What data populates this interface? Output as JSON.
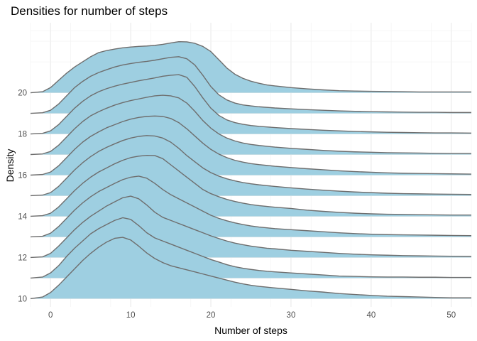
{
  "chart_data": {
    "type": "area",
    "subtype": "ridgeline",
    "title": "Densities for number of steps",
    "xlabel": "Number of steps",
    "ylabel": "Density",
    "xlim": [
      -2.5,
      52.5
    ],
    "ylim": [
      9.6,
      23.4
    ],
    "x_ticks": [
      0,
      10,
      20,
      30,
      40,
      50
    ],
    "y_ticks": [
      10,
      12,
      14,
      16,
      18,
      20
    ],
    "grid": true,
    "fill_color": "#9ecfe1",
    "line_color": "#6e6e6e",
    "series": [
      {
        "baseline": 10,
        "x": [
          -2.5,
          -1,
          0,
          1,
          2,
          3,
          4,
          5,
          6,
          7,
          8,
          9,
          10,
          11,
          12,
          13,
          14,
          15,
          16,
          17,
          18,
          19,
          20,
          21,
          22,
          23,
          24,
          25,
          26,
          27,
          28,
          30,
          32,
          34,
          36,
          38,
          40,
          42,
          44,
          46,
          48,
          50,
          52.5
        ],
        "values": [
          10,
          10.08,
          10.3,
          10.65,
          11.05,
          11.45,
          11.85,
          12.2,
          12.5,
          12.75,
          12.93,
          12.98,
          12.85,
          12.55,
          12.22,
          11.95,
          11.75,
          11.6,
          11.5,
          11.4,
          11.3,
          11.2,
          11.1,
          11,
          10.9,
          10.8,
          10.72,
          10.65,
          10.6,
          10.56,
          10.52,
          10.45,
          10.38,
          10.32,
          10.25,
          10.2,
          10.16,
          10.12,
          10.1,
          10.08,
          10.06,
          10.04,
          10.04
        ]
      },
      {
        "baseline": 11,
        "x": [
          -2.5,
          -1,
          0,
          1,
          2,
          3,
          4,
          5,
          6,
          7,
          8,
          9,
          10,
          11,
          12,
          13,
          14,
          15,
          16,
          17,
          18,
          19,
          20,
          21,
          22,
          23,
          24,
          25,
          26,
          27,
          28,
          30,
          32,
          34,
          36,
          38,
          40,
          42,
          44,
          46,
          48,
          50,
          52.5
        ],
        "values": [
          11,
          11.05,
          11.25,
          11.6,
          12.05,
          12.45,
          12.8,
          13.15,
          13.4,
          13.6,
          13.8,
          13.93,
          13.85,
          13.55,
          13.2,
          12.95,
          12.8,
          12.65,
          12.5,
          12.35,
          12.2,
          12.05,
          11.9,
          11.78,
          11.65,
          11.55,
          11.48,
          11.42,
          11.37,
          11.33,
          11.3,
          11.25,
          11.2,
          11.15,
          11.1,
          11.08,
          11.06,
          11.05,
          11.05,
          11.04,
          11.04,
          11.03,
          11.03
        ]
      },
      {
        "baseline": 12,
        "x": [
          -2.5,
          -1,
          0,
          1,
          2,
          3,
          4,
          5,
          6,
          7,
          8,
          9,
          10,
          11,
          12,
          13,
          14,
          15,
          16,
          17,
          18,
          19,
          20,
          21,
          22,
          23,
          24,
          25,
          26,
          27,
          28,
          30,
          32,
          34,
          36,
          38,
          40,
          42,
          44,
          46,
          48,
          50,
          52.5
        ],
        "values": [
          12,
          12.03,
          12.2,
          12.55,
          12.95,
          13.35,
          13.7,
          14,
          14.25,
          14.5,
          14.7,
          14.9,
          14.98,
          14.85,
          14.55,
          14.2,
          13.95,
          13.8,
          13.65,
          13.5,
          13.35,
          13.2,
          13.05,
          12.92,
          12.8,
          12.7,
          12.62,
          12.55,
          12.5,
          12.45,
          12.42,
          12.35,
          12.3,
          12.25,
          12.2,
          12.16,
          12.13,
          12.11,
          12.09,
          12.08,
          12.07,
          12.06,
          12.05
        ]
      },
      {
        "baseline": 13,
        "x": [
          -2.5,
          -1,
          0,
          1,
          2,
          3,
          4,
          5,
          6,
          7,
          8,
          9,
          10,
          11,
          12,
          13,
          14,
          15,
          16,
          17,
          18,
          19,
          20,
          21,
          22,
          23,
          24,
          25,
          26,
          27,
          28,
          30,
          32,
          34,
          36,
          38,
          40,
          42,
          44,
          46,
          48,
          50,
          52.5
        ],
        "values": [
          13,
          13.03,
          13.18,
          13.5,
          13.9,
          14.3,
          14.65,
          14.95,
          15.2,
          15.4,
          15.6,
          15.78,
          15.9,
          15.95,
          15.85,
          15.6,
          15.3,
          15.05,
          14.85,
          14.65,
          14.45,
          14.25,
          14.05,
          13.9,
          13.78,
          13.68,
          13.6,
          13.53,
          13.48,
          13.44,
          13.4,
          13.35,
          13.3,
          13.25,
          13.2,
          13.16,
          13.13,
          13.11,
          13.1,
          13.09,
          13.08,
          13.07,
          13.06
        ]
      },
      {
        "baseline": 14,
        "x": [
          -2.5,
          -1,
          0,
          1,
          2,
          3,
          4,
          5,
          6,
          7,
          8,
          9,
          10,
          11,
          12,
          13,
          14,
          15,
          16,
          17,
          18,
          19,
          20,
          21,
          22,
          23,
          24,
          25,
          26,
          27,
          28,
          30,
          32,
          34,
          36,
          38,
          40,
          42,
          44,
          46,
          48,
          50,
          52.5
        ],
        "values": [
          14,
          14.03,
          14.15,
          14.45,
          14.85,
          15.25,
          15.6,
          15.9,
          16.15,
          16.35,
          16.55,
          16.72,
          16.85,
          16.92,
          16.96,
          16.95,
          16.8,
          16.5,
          16.2,
          15.9,
          15.6,
          15.3,
          15.1,
          14.95,
          14.82,
          14.72,
          14.64,
          14.57,
          14.52,
          14.48,
          14.44,
          14.38,
          14.3,
          14.24,
          14.19,
          14.15,
          14.12,
          14.1,
          14.09,
          14.08,
          14.07,
          14.06,
          14.06
        ]
      },
      {
        "baseline": 15,
        "x": [
          -2.5,
          -1,
          0,
          1,
          2,
          3,
          4,
          5,
          6,
          7,
          8,
          9,
          10,
          11,
          12,
          13,
          14,
          15,
          16,
          17,
          18,
          19,
          20,
          21,
          22,
          23,
          24,
          25,
          26,
          27,
          28,
          30,
          32,
          34,
          36,
          38,
          40,
          42,
          44,
          46,
          48,
          50,
          52.5
        ],
        "values": [
          15,
          15.03,
          15.15,
          15.45,
          15.85,
          16.25,
          16.6,
          16.9,
          17.15,
          17.35,
          17.52,
          17.68,
          17.8,
          17.88,
          17.92,
          17.9,
          17.8,
          17.6,
          17.3,
          16.95,
          16.65,
          16.35,
          16.12,
          15.95,
          15.82,
          15.72,
          15.64,
          15.58,
          15.53,
          15.49,
          15.45,
          15.38,
          15.32,
          15.27,
          15.22,
          15.18,
          15.15,
          15.12,
          15.1,
          15.09,
          15.08,
          15.07,
          15.06
        ]
      },
      {
        "baseline": 16,
        "x": [
          -2.5,
          -1,
          0,
          1,
          2,
          3,
          4,
          5,
          6,
          7,
          8,
          9,
          10,
          11,
          12,
          13,
          14,
          15,
          16,
          17,
          18,
          19,
          20,
          21,
          22,
          23,
          24,
          25,
          26,
          27,
          28,
          30,
          32,
          34,
          36,
          38,
          40,
          42,
          44,
          46,
          48,
          50,
          52.5
        ],
        "values": [
          16,
          16.03,
          16.15,
          16.45,
          16.85,
          17.25,
          17.6,
          17.88,
          18.1,
          18.3,
          18.45,
          18.6,
          18.72,
          18.8,
          18.85,
          18.87,
          18.85,
          18.75,
          18.55,
          18.25,
          17.9,
          17.55,
          17.25,
          17.02,
          16.85,
          16.72,
          16.63,
          16.56,
          16.51,
          16.47,
          16.43,
          16.37,
          16.31,
          16.26,
          16.21,
          16.17,
          16.14,
          16.11,
          16.09,
          16.08,
          16.07,
          16.06,
          16.05
        ]
      },
      {
        "baseline": 17,
        "x": [
          -2.5,
          -1,
          0,
          1,
          2,
          3,
          4,
          5,
          6,
          7,
          8,
          9,
          10,
          11,
          12,
          13,
          14,
          15,
          16,
          17,
          18,
          19,
          20,
          21,
          22,
          23,
          24,
          25,
          26,
          27,
          28,
          30,
          32,
          34,
          36,
          38,
          40,
          42,
          44,
          46,
          48,
          50,
          52.5
        ],
        "values": [
          17,
          17.03,
          17.15,
          17.45,
          17.85,
          18.25,
          18.6,
          18.88,
          19.08,
          19.25,
          19.4,
          19.52,
          19.62,
          19.7,
          19.78,
          19.85,
          19.88,
          19.85,
          19.75,
          19.5,
          19.1,
          18.65,
          18.28,
          18,
          17.8,
          17.66,
          17.56,
          17.49,
          17.44,
          17.4,
          17.36,
          17.3,
          17.25,
          17.2,
          17.16,
          17.13,
          17.11,
          17.09,
          17.08,
          17.07,
          17.06,
          17.05,
          17.05
        ]
      },
      {
        "baseline": 18,
        "x": [
          -2.5,
          -1,
          0,
          1,
          2,
          3,
          4,
          5,
          6,
          7,
          8,
          9,
          10,
          11,
          12,
          13,
          14,
          15,
          16,
          17,
          18,
          19,
          20,
          21,
          22,
          23,
          24,
          25,
          26,
          27,
          28,
          30,
          32,
          34,
          36,
          38,
          40,
          42,
          44,
          46,
          48,
          50,
          52.5
        ],
        "values": [
          18,
          18.03,
          18.15,
          18.45,
          18.85,
          19.25,
          19.58,
          19.85,
          20.05,
          20.2,
          20.32,
          20.42,
          20.5,
          20.58,
          20.65,
          20.72,
          20.8,
          20.85,
          20.88,
          20.75,
          20.3,
          19.75,
          19.25,
          18.9,
          18.68,
          18.55,
          18.47,
          18.41,
          18.37,
          18.34,
          18.31,
          18.26,
          18.22,
          18.18,
          18.15,
          18.12,
          18.1,
          18.08,
          18.07,
          18.06,
          18.05,
          18.05,
          18.04
        ]
      },
      {
        "baseline": 19,
        "x": [
          -2.5,
          -1,
          0,
          1,
          2,
          3,
          4,
          5,
          6,
          7,
          8,
          9,
          10,
          11,
          12,
          13,
          14,
          15,
          16,
          17,
          18,
          19,
          20,
          21,
          22,
          23,
          24,
          25,
          26,
          27,
          28,
          30,
          32,
          34,
          36,
          38,
          40,
          42,
          44,
          46,
          48,
          50,
          52.5
        ],
        "values": [
          19,
          19.03,
          19.15,
          19.45,
          19.85,
          20.25,
          20.55,
          20.8,
          20.98,
          21.12,
          21.25,
          21.35,
          21.42,
          21.48,
          21.52,
          21.58,
          21.65,
          21.72,
          21.75,
          21.65,
          21.35,
          20.85,
          20.3,
          19.9,
          19.65,
          19.5,
          19.41,
          19.36,
          19.32,
          19.29,
          19.26,
          19.22,
          19.18,
          19.15,
          19.12,
          19.1,
          19.08,
          19.07,
          19.06,
          19.05,
          19.05,
          19.04,
          19.04
        ]
      },
      {
        "baseline": 20,
        "x": [
          -2.5,
          -1,
          0,
          1,
          2,
          3,
          4,
          5,
          6,
          7,
          8,
          9,
          10,
          11,
          12,
          13,
          14,
          15,
          16,
          17,
          18,
          19,
          20,
          21,
          22,
          23,
          24,
          25,
          26,
          27,
          28,
          30,
          32,
          34,
          36,
          38,
          40,
          42,
          44,
          46,
          48,
          50,
          52.5
        ],
        "values": [
          20,
          20.05,
          20.25,
          20.6,
          20.95,
          21.25,
          21.5,
          21.75,
          21.95,
          22.05,
          22.12,
          22.18,
          22.22,
          22.25,
          22.27,
          22.3,
          22.35,
          22.42,
          22.48,
          22.47,
          22.4,
          22.25,
          22,
          21.6,
          21.2,
          20.9,
          20.7,
          20.56,
          20.46,
          20.38,
          20.33,
          20.25,
          20.19,
          20.14,
          20.1,
          20.08,
          20.07,
          20.06,
          20.05,
          20.04,
          20.04,
          20.04,
          20.04
        ]
      }
    ]
  }
}
